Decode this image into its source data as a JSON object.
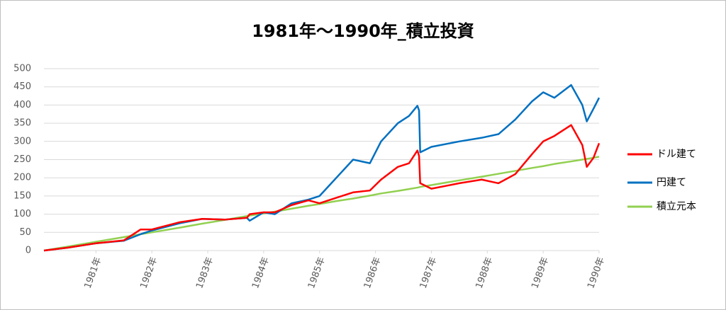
{
  "chart_data": {
    "type": "line",
    "title": "1981年～1990年_積立投資",
    "x": [
      1980.07,
      1980.5,
      1981.0,
      1981.5,
      1981.8,
      1982.0,
      1982.5,
      1982.9,
      1983.3,
      1983.7,
      1983.75,
      1984.0,
      1984.2,
      1984.5,
      1984.8,
      1985.0,
      1985.3,
      1985.6,
      1985.9,
      1986.1,
      1986.4,
      1986.6,
      1986.75,
      1986.78,
      1986.8,
      1987.0,
      1987.5,
      1987.9,
      1988.2,
      1988.5,
      1988.8,
      1989.0,
      1989.2,
      1989.5,
      1989.7,
      1989.78,
      1989.9,
      1990.0
    ],
    "series": [
      {
        "name": "ドル建て",
        "color": "#ff0000",
        "values": [
          0,
          8,
          20,
          28,
          58,
          58,
          78,
          87,
          85,
          90,
          100,
          105,
          105,
          125,
          138,
          130,
          145,
          160,
          165,
          195,
          230,
          240,
          275,
          260,
          185,
          170,
          185,
          195,
          185,
          210,
          265,
          300,
          315,
          345,
          290,
          230,
          255,
          295
        ]
      },
      {
        "name": "円建て",
        "color": "#0070c0",
        "values": [
          0,
          8,
          20,
          27,
          45,
          55,
          75,
          87,
          85,
          90,
          82,
          105,
          100,
          130,
          140,
          150,
          200,
          250,
          240,
          300,
          350,
          370,
          398,
          385,
          270,
          285,
          300,
          310,
          320,
          360,
          410,
          435,
          420,
          455,
          400,
          355,
          390,
          420
        ]
      },
      {
        "name": "積立元本",
        "color": "#92d050",
        "values": [
          0,
          11,
          24,
          37,
          45,
          50,
          63,
          74,
          84,
          95,
          96,
          102,
          107,
          115,
          123,
          128,
          136,
          143,
          151,
          157,
          164,
          169,
          173,
          174,
          175,
          180,
          193,
          203,
          211,
          219,
          227,
          232,
          238,
          245,
          250,
          252,
          255,
          258
        ]
      }
    ],
    "xlim": [
      1980.07,
      1990.0
    ],
    "xticks": [
      {
        "value": 1981,
        "label": "1981年"
      },
      {
        "value": 1982,
        "label": "1982年"
      },
      {
        "value": 1983,
        "label": "1983年"
      },
      {
        "value": 1984,
        "label": "1984年"
      },
      {
        "value": 1985,
        "label": "1985年"
      },
      {
        "value": 1986,
        "label": "1986年"
      },
      {
        "value": 1987,
        "label": "1987年"
      },
      {
        "value": 1988,
        "label": "1988年"
      },
      {
        "value": 1989,
        "label": "1989年"
      },
      {
        "value": 1990,
        "label": "1990年"
      }
    ],
    "ylim": [
      0,
      500
    ],
    "yticks": [
      0,
      50,
      100,
      150,
      200,
      250,
      300,
      350,
      400,
      450,
      500
    ],
    "grid": true,
    "legend": "right"
  }
}
